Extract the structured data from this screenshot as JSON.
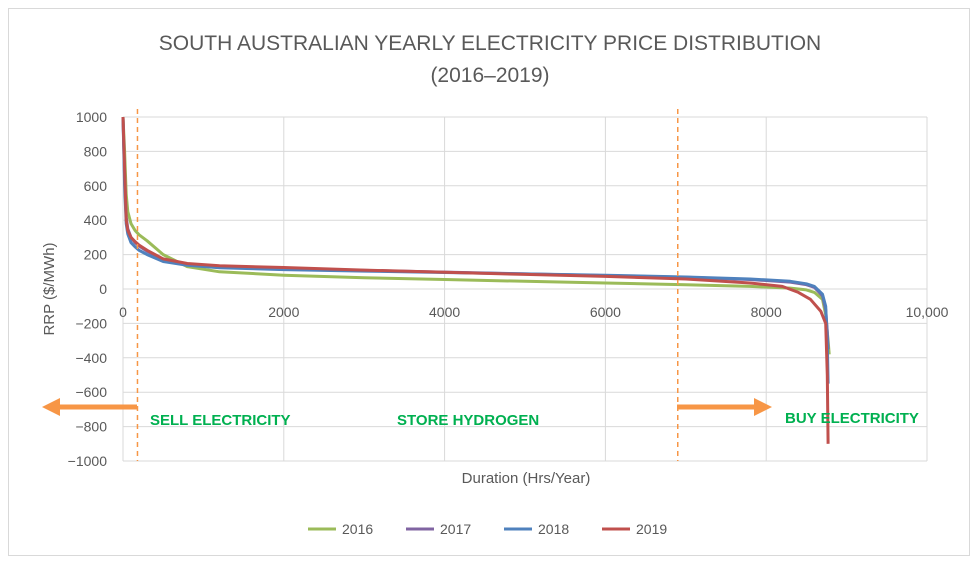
{
  "chart_data": {
    "type": "line",
    "title": "SOUTH AUSTRALIAN YEARLY ELECTRICITY PRICE DISTRIBUTION",
    "subtitle": "(2016–2019)",
    "xlabel": "Duration (Hrs/Year)",
    "ylabel": "RRP ($/MWh)",
    "xlim": [
      0,
      10000
    ],
    "ylim": [
      -1000,
      1000
    ],
    "x_ticks": [
      0,
      2000,
      4000,
      6000,
      8000,
      10000
    ],
    "x_tick_labels": [
      "0",
      "2000",
      "4000",
      "6000",
      "8000",
      "10,000"
    ],
    "y_ticks": [
      1000,
      800,
      600,
      400,
      200,
      0,
      -200,
      -400,
      -600,
      -800,
      -1000
    ],
    "y_tick_labels": [
      "1000",
      "800",
      "600",
      "400",
      "200",
      "0",
      "−200",
      "−400",
      "−600",
      "−800",
      "−1000"
    ],
    "grid": true,
    "legend_position": "bottom",
    "series": [
      {
        "name": "2016",
        "color": "#9bbb59",
        "x": [
          0,
          20,
          40,
          60,
          100,
          150,
          200,
          300,
          500,
          800,
          1200,
          2000,
          3000,
          4000,
          5000,
          6000,
          7000,
          7800,
          8300,
          8500,
          8600,
          8700,
          8740,
          8770,
          8784
        ],
        "y": [
          1000,
          800,
          550,
          450,
          380,
          340,
          315,
          280,
          200,
          130,
          100,
          80,
          65,
          55,
          45,
          35,
          25,
          15,
          5,
          -5,
          -20,
          -60,
          -150,
          -300,
          -380
        ]
      },
      {
        "name": "2017",
        "color": "#8064a2",
        "x": [
          0,
          20,
          40,
          60,
          100,
          150,
          200,
          300,
          500,
          800,
          1200,
          2000,
          3000,
          4000,
          5000,
          6000,
          7000,
          7800,
          8300,
          8500,
          8600,
          8700,
          8740,
          8760,
          8770
        ],
        "y": [
          1000,
          650,
          420,
          350,
          300,
          270,
          250,
          220,
          170,
          145,
          130,
          118,
          108,
          98,
          88,
          78,
          68,
          55,
          40,
          25,
          10,
          -40,
          -120,
          -250,
          -350
        ]
      },
      {
        "name": "2018",
        "color": "#4f81bd",
        "x": [
          0,
          20,
          40,
          60,
          100,
          150,
          200,
          300,
          500,
          800,
          1200,
          2000,
          3000,
          4000,
          5000,
          6000,
          7000,
          7800,
          8300,
          8500,
          8600,
          8700,
          8740,
          8760,
          8770
        ],
        "y": [
          1000,
          600,
          380,
          320,
          270,
          245,
          225,
          200,
          160,
          138,
          124,
          113,
          104,
          96,
          88,
          80,
          70,
          58,
          45,
          30,
          15,
          -30,
          -100,
          -300,
          -550
        ]
      },
      {
        "name": "2019",
        "color": "#c0504d",
        "x": [
          0,
          20,
          40,
          60,
          100,
          150,
          200,
          300,
          500,
          800,
          1200,
          2000,
          3000,
          4000,
          5000,
          6000,
          7000,
          7800,
          8200,
          8400,
          8550,
          8680,
          8740,
          8760,
          8770
        ],
        "y": [
          1000,
          700,
          400,
          340,
          300,
          275,
          255,
          225,
          175,
          148,
          135,
          125,
          110,
          97,
          85,
          73,
          58,
          35,
          15,
          -20,
          -60,
          -130,
          -200,
          -500,
          -900
        ]
      }
    ],
    "vertical_lines": [
      {
        "x": 180,
        "color": "#f79646"
      },
      {
        "x": 6900,
        "color": "#f79646"
      }
    ],
    "region_labels": [
      "SELL ELECTRICITY",
      "STORE HYDROGEN",
      "BUY ELECTRICITY"
    ],
    "region_label_color": "#00b050",
    "arrow_color": "#f79646"
  }
}
